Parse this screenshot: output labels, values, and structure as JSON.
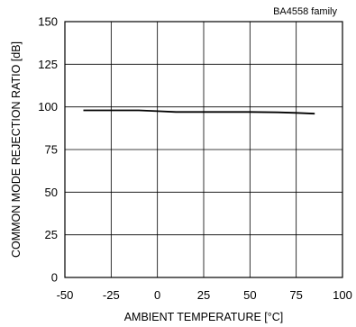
{
  "chart_data": {
    "type": "line",
    "title": "",
    "annotation": "BA4558  family",
    "xlabel": "AMBIENT TEMPERATURE [°C]",
    "ylabel": "COMMON MODE REJECTION RATIO [dB]",
    "xlim": [
      -50,
      100
    ],
    "ylim": [
      0,
      150
    ],
    "xticks": [
      -50,
      -25,
      0,
      25,
      50,
      75,
      100
    ],
    "yticks": [
      0,
      25,
      50,
      75,
      100,
      125,
      150
    ],
    "xtick_labels": [
      "-50",
      "-25",
      "0",
      "25",
      "50",
      "75",
      "100"
    ],
    "ytick_labels": [
      "0",
      "25",
      "50",
      "75",
      "100",
      "125",
      "150"
    ],
    "grid": true,
    "series": [
      {
        "color": "#000000",
        "x": [
          -40,
          -25,
          -10,
          0,
          10,
          25,
          50,
          65,
          75,
          85
        ],
        "y": [
          98,
          98,
          98,
          97.5,
          97,
          97,
          97,
          96.8,
          96.5,
          96
        ]
      }
    ]
  }
}
